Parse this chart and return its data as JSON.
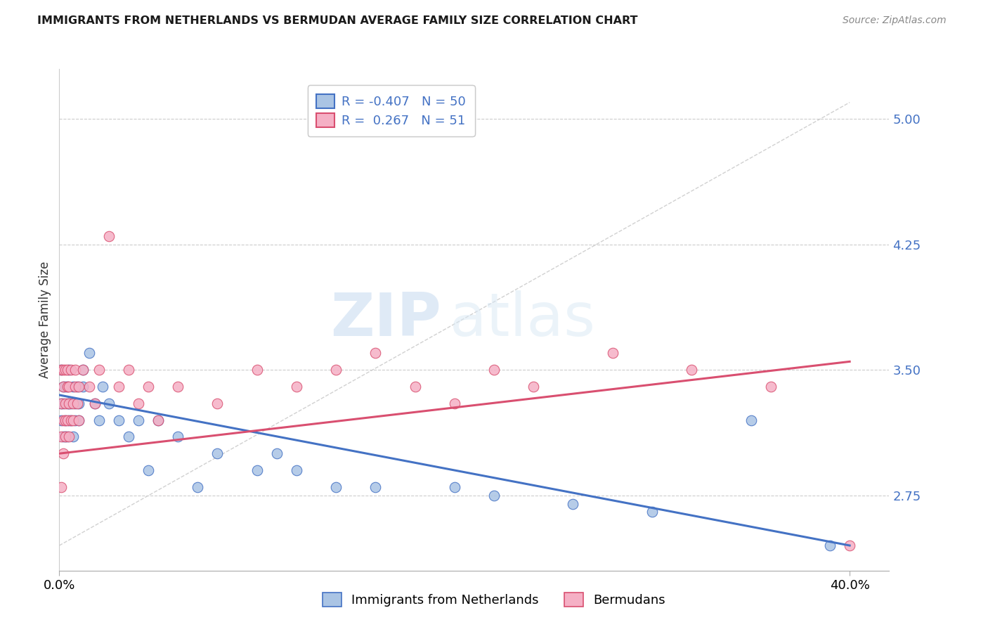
{
  "title": "IMMIGRANTS FROM NETHERLANDS VS BERMUDAN AVERAGE FAMILY SIZE CORRELATION CHART",
  "source": "Source: ZipAtlas.com",
  "ylabel": "Average Family Size",
  "yticks": [
    2.75,
    3.5,
    4.25,
    5.0
  ],
  "ytick_labels": [
    "2.75",
    "3.50",
    "4.25",
    "5.00"
  ],
  "xlim": [
    0.0,
    0.42
  ],
  "ylim": [
    2.3,
    5.3
  ],
  "color_blue": "#aac4e4",
  "color_pink": "#f5b0c5",
  "line_blue": "#4472c4",
  "line_pink": "#d94f70",
  "line_gray": "#cccccc",
  "watermark_zip": "ZIP",
  "watermark_atlas": "atlas",
  "blue_r": -0.407,
  "blue_n": 50,
  "pink_r": 0.267,
  "pink_n": 51,
  "legend1_label": "Immigrants from Netherlands",
  "legend2_label": "Bermudans",
  "blue_scatter_x": [
    0.001,
    0.001,
    0.001,
    0.002,
    0.002,
    0.002,
    0.003,
    0.003,
    0.003,
    0.004,
    0.004,
    0.004,
    0.005,
    0.005,
    0.005,
    0.006,
    0.006,
    0.007,
    0.007,
    0.008,
    0.008,
    0.009,
    0.01,
    0.01,
    0.012,
    0.012,
    0.015,
    0.018,
    0.02,
    0.022,
    0.025,
    0.03,
    0.035,
    0.04,
    0.045,
    0.05,
    0.06,
    0.07,
    0.08,
    0.1,
    0.11,
    0.12,
    0.14,
    0.16,
    0.2,
    0.22,
    0.26,
    0.3,
    0.35,
    0.39
  ],
  "blue_scatter_y": [
    3.3,
    3.5,
    3.2,
    3.4,
    3.1,
    3.3,
    3.2,
    3.4,
    3.1,
    3.3,
    3.1,
    3.4,
    3.2,
    3.3,
    3.5,
    3.2,
    3.3,
    3.1,
    3.4,
    3.3,
    3.2,
    3.4,
    3.3,
    3.2,
    3.4,
    3.5,
    3.6,
    3.3,
    3.2,
    3.4,
    3.3,
    3.2,
    3.1,
    3.2,
    2.9,
    3.2,
    3.1,
    2.8,
    3.0,
    2.9,
    3.0,
    2.9,
    2.8,
    2.8,
    2.8,
    2.75,
    2.7,
    2.65,
    3.2,
    2.45
  ],
  "pink_scatter_x": [
    0.001,
    0.001,
    0.001,
    0.001,
    0.002,
    0.002,
    0.002,
    0.002,
    0.003,
    0.003,
    0.003,
    0.003,
    0.004,
    0.004,
    0.004,
    0.005,
    0.005,
    0.005,
    0.006,
    0.006,
    0.007,
    0.007,
    0.008,
    0.008,
    0.009,
    0.01,
    0.01,
    0.012,
    0.015,
    0.018,
    0.02,
    0.025,
    0.03,
    0.035,
    0.04,
    0.045,
    0.05,
    0.06,
    0.08,
    0.1,
    0.12,
    0.14,
    0.16,
    0.18,
    0.2,
    0.22,
    0.24,
    0.28,
    0.32,
    0.36,
    0.4
  ],
  "pink_scatter_y": [
    3.3,
    3.5,
    3.1,
    2.8,
    3.2,
    3.4,
    3.0,
    3.5,
    3.3,
    3.1,
    3.5,
    3.2,
    3.4,
    3.2,
    3.5,
    3.3,
    3.1,
    3.4,
    3.2,
    3.5,
    3.3,
    3.2,
    3.4,
    3.5,
    3.3,
    3.2,
    3.4,
    3.5,
    3.4,
    3.3,
    3.5,
    4.3,
    3.4,
    3.5,
    3.3,
    3.4,
    3.2,
    3.4,
    3.3,
    3.5,
    3.4,
    3.5,
    3.6,
    3.4,
    3.3,
    3.5,
    3.4,
    3.6,
    3.5,
    3.4,
    2.45
  ]
}
